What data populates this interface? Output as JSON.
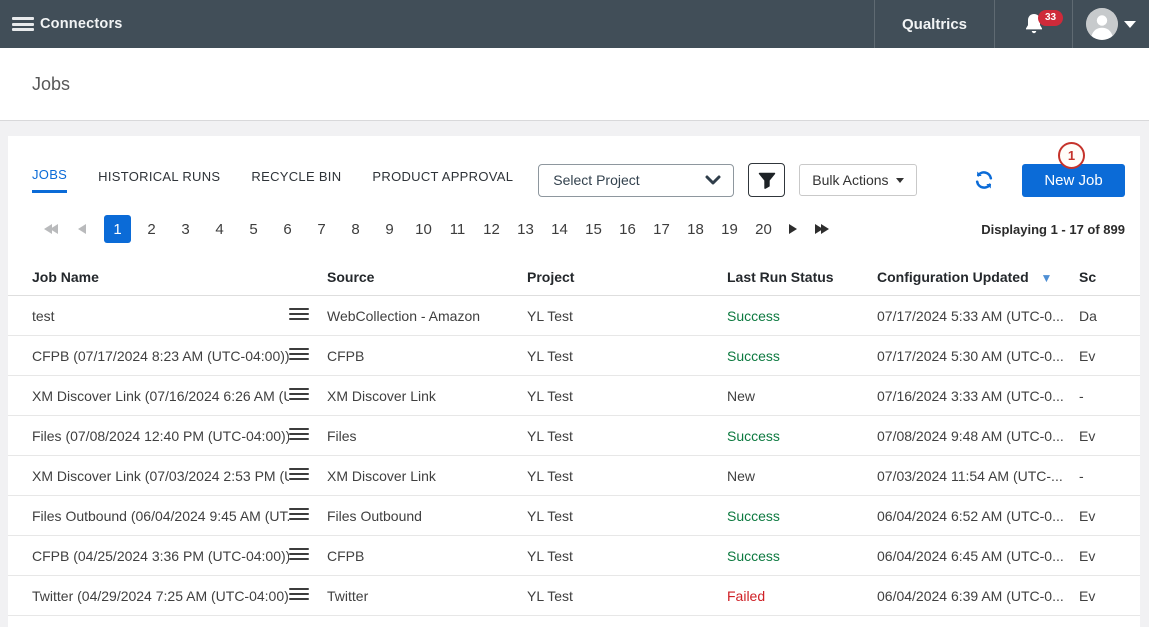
{
  "topbar": {
    "app_title": "Connectors",
    "brand": "Qualtrics",
    "notification_count": "33"
  },
  "page": {
    "title": "Jobs"
  },
  "tabs": [
    {
      "label": "JOBS",
      "active": true
    },
    {
      "label": "HISTORICAL RUNS",
      "active": false
    },
    {
      "label": "RECYCLE BIN",
      "active": false
    },
    {
      "label": "PRODUCT APPROVAL",
      "active": false
    }
  ],
  "toolbar": {
    "project_select_value": "Select Project",
    "bulk_actions_label": "Bulk Actions",
    "new_job_label": "New Job",
    "annotation_badge": "1"
  },
  "icons": {
    "hamburger": "menu-icon (3 bars)",
    "bell": "bell-icon",
    "avatar": "user-avatar-icon",
    "chevron_down": "chevron-down-icon",
    "funnel": "filter-funnel-icon",
    "refresh": "refresh-icon (circular arrows)",
    "row_menu": "row-actions-menu-icon (3 bars)",
    "sort_caret": "▾"
  },
  "colors": {
    "topbar_bg": "#414e58",
    "accent_blue": "#0b6bd7",
    "success_green": "#0d7a40",
    "failed_red": "#cf2026",
    "badge_red": "#cf2a3a",
    "annotation_red": "#c5332b"
  },
  "pagination": {
    "pages": [
      "1",
      "2",
      "3",
      "4",
      "5",
      "6",
      "7",
      "8",
      "9",
      "10",
      "11",
      "12",
      "13",
      "14",
      "15",
      "16",
      "17",
      "18",
      "19",
      "20"
    ],
    "active_page": "1",
    "summary": "Displaying 1 - 17 of 899"
  },
  "table": {
    "columns": [
      "Job Name",
      "Source",
      "Project",
      "Last Run Status",
      "Configuration Updated",
      "Sc"
    ],
    "rows": [
      {
        "job_name": "test",
        "source": "WebCollection - Amazon",
        "project": "YL Test",
        "status": "Success",
        "status_type": "success",
        "config_updated": "07/17/2024 5:33 AM (UTC-0...",
        "schedule": "Da"
      },
      {
        "job_name": "CFPB (07/17/2024 8:23 AM (UTC-04:00))",
        "source": "CFPB",
        "project": "YL Test",
        "status": "Success",
        "status_type": "success",
        "config_updated": "07/17/2024 5:30 AM (UTC-0...",
        "schedule": "Ev"
      },
      {
        "job_name": "XM Discover Link (07/16/2024 6:26 AM (U...",
        "source": "XM Discover Link",
        "project": "YL Test",
        "status": "New",
        "status_type": "neutral",
        "config_updated": "07/16/2024 3:33 AM (UTC-0...",
        "schedule": "-"
      },
      {
        "job_name": "Files (07/08/2024 12:40 PM (UTC-04:00))",
        "source": "Files",
        "project": "YL Test",
        "status": "Success",
        "status_type": "success",
        "config_updated": "07/08/2024 9:48 AM (UTC-0...",
        "schedule": "Ev"
      },
      {
        "job_name": "XM Discover Link (07/03/2024 2:53 PM (U...",
        "source": "XM Discover Link",
        "project": "YL Test",
        "status": "New",
        "status_type": "neutral",
        "config_updated": "07/03/2024 11:54 AM (UTC-...",
        "schedule": "-"
      },
      {
        "job_name": "Files Outbound (06/04/2024 9:45 AM (UT...",
        "source": "Files Outbound",
        "project": "YL Test",
        "status": "Success",
        "status_type": "success",
        "config_updated": "06/04/2024 6:52 AM (UTC-0...",
        "schedule": "Ev"
      },
      {
        "job_name": "CFPB (04/25/2024 3:36 PM (UTC-04:00))",
        "source": "CFPB",
        "project": "YL Test",
        "status": "Success",
        "status_type": "success",
        "config_updated": "06/04/2024 6:45 AM (UTC-0...",
        "schedule": "Ev"
      },
      {
        "job_name": "Twitter (04/29/2024 7:25 AM (UTC-04:00))",
        "source": "Twitter",
        "project": "YL Test",
        "status": "Failed",
        "status_type": "failed",
        "config_updated": "06/04/2024 6:39 AM (UTC-0...",
        "schedule": "Ev"
      }
    ]
  }
}
